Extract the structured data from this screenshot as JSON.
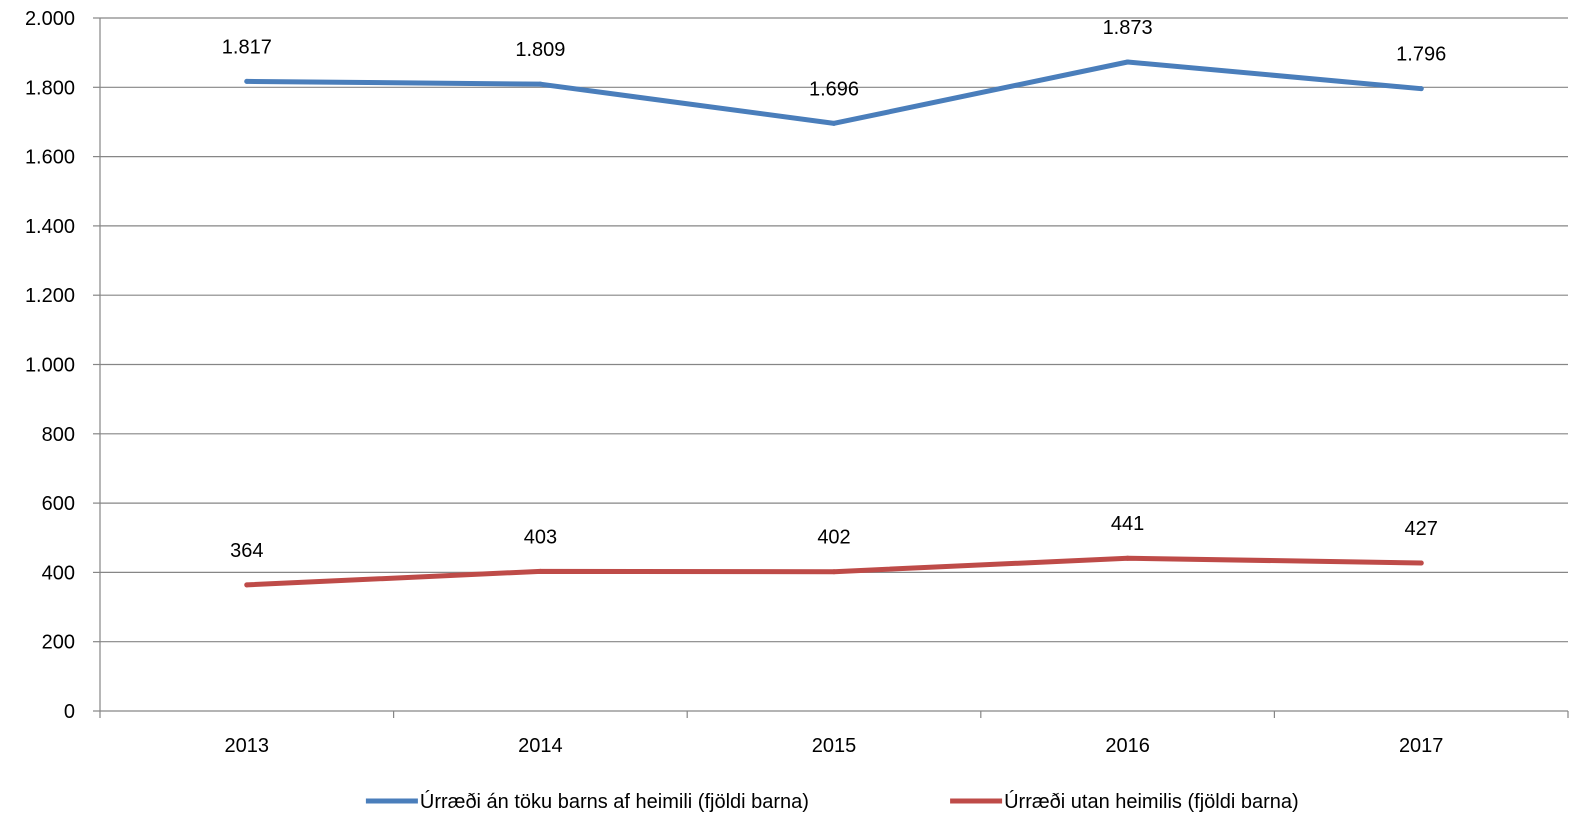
{
  "chart_data": {
    "type": "line",
    "categories": [
      "2013",
      "2014",
      "2015",
      "2016",
      "2017"
    ],
    "series": [
      {
        "name": "Úrræði án töku barns af heimili (fjöldi barna)",
        "values": [
          1817,
          1809,
          1696,
          1873,
          1796
        ],
        "labels": [
          "1.817",
          "1.809",
          "1.696",
          "1.873",
          "1.796"
        ],
        "color": "#4A7EBB"
      },
      {
        "name": "Úrræði utan heimilis (fjöldi barna)",
        "values": [
          364,
          403,
          402,
          441,
          427
        ],
        "labels": [
          "364",
          "403",
          "402",
          "441",
          "427"
        ],
        "color": "#BE4B48"
      }
    ],
    "ylim": [
      0,
      2000
    ],
    "yticks": [
      0,
      200,
      400,
      600,
      800,
      1000,
      1200,
      1400,
      1600,
      1800,
      2000
    ],
    "ytick_labels": [
      "0",
      "200",
      "400",
      "600",
      "800",
      "1.000",
      "1.200",
      "1.400",
      "1.600",
      "1.800",
      "2.000"
    ],
    "grid": true,
    "legend_position": "bottom",
    "title": "",
    "xlabel": "",
    "ylabel": ""
  }
}
